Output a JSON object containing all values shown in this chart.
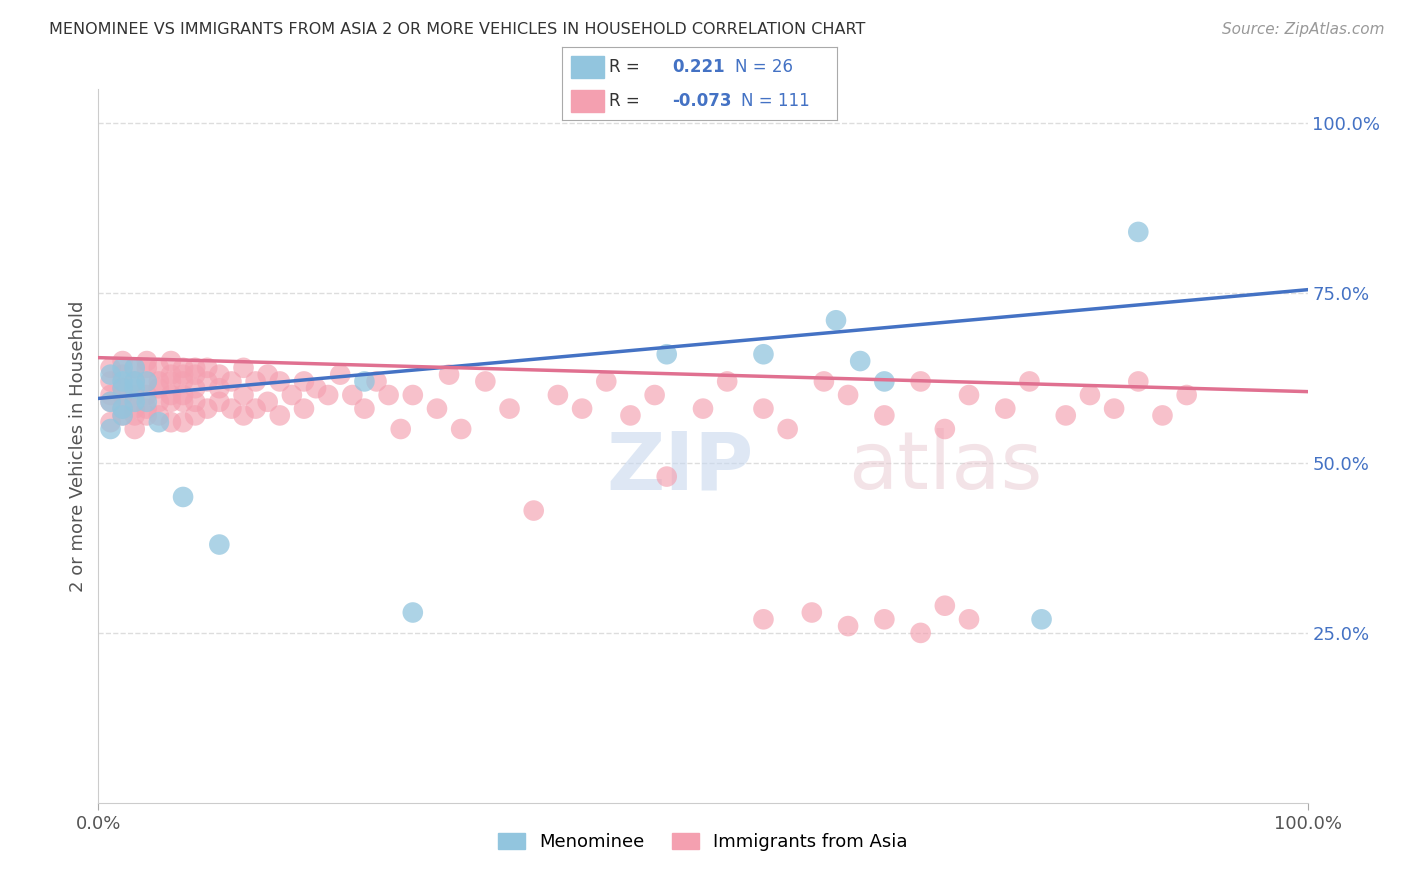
{
  "title": "MENOMINEE VS IMMIGRANTS FROM ASIA 2 OR MORE VEHICLES IN HOUSEHOLD CORRELATION CHART",
  "source": "Source: ZipAtlas.com",
  "ylabel": "2 or more Vehicles in Household",
  "blue_color": "#92c5de",
  "pink_color": "#f4a0b0",
  "blue_line_color": "#4472c4",
  "pink_line_color": "#e07090",
  "blue_R": "0.221",
  "blue_N": "26",
  "pink_R": "-0.073",
  "pink_N": "111",
  "blue_line_start_y": 0.595,
  "blue_line_end_y": 0.755,
  "pink_line_start_y": 0.655,
  "pink_line_end_y": 0.605,
  "blue_scatter_x": [
    0.01,
    0.01,
    0.01,
    0.02,
    0.02,
    0.02,
    0.02,
    0.02,
    0.03,
    0.03,
    0.03,
    0.03,
    0.04,
    0.04,
    0.05,
    0.07,
    0.1,
    0.22,
    0.26,
    0.47,
    0.55,
    0.61,
    0.63,
    0.65,
    0.78,
    0.86
  ],
  "blue_scatter_y": [
    0.63,
    0.55,
    0.59,
    0.62,
    0.58,
    0.64,
    0.57,
    0.61,
    0.62,
    0.59,
    0.64,
    0.61,
    0.62,
    0.59,
    0.56,
    0.45,
    0.38,
    0.62,
    0.28,
    0.66,
    0.66,
    0.71,
    0.65,
    0.62,
    0.27,
    0.84
  ],
  "pink_scatter_x": [
    0.01,
    0.01,
    0.01,
    0.01,
    0.01,
    0.02,
    0.02,
    0.02,
    0.02,
    0.02,
    0.02,
    0.03,
    0.03,
    0.03,
    0.03,
    0.03,
    0.03,
    0.04,
    0.04,
    0.04,
    0.04,
    0.04,
    0.04,
    0.05,
    0.05,
    0.05,
    0.05,
    0.05,
    0.06,
    0.06,
    0.06,
    0.06,
    0.06,
    0.06,
    0.07,
    0.07,
    0.07,
    0.07,
    0.07,
    0.07,
    0.08,
    0.08,
    0.08,
    0.08,
    0.08,
    0.09,
    0.09,
    0.09,
    0.1,
    0.1,
    0.1,
    0.11,
    0.11,
    0.12,
    0.12,
    0.12,
    0.13,
    0.13,
    0.14,
    0.14,
    0.15,
    0.15,
    0.16,
    0.17,
    0.17,
    0.18,
    0.19,
    0.2,
    0.21,
    0.22,
    0.23,
    0.24,
    0.25,
    0.26,
    0.28,
    0.29,
    0.3,
    0.32,
    0.34,
    0.36,
    0.38,
    0.4,
    0.42,
    0.44,
    0.46,
    0.47,
    0.5,
    0.52,
    0.55,
    0.57,
    0.6,
    0.62,
    0.65,
    0.68,
    0.7,
    0.72,
    0.75,
    0.77,
    0.8,
    0.82,
    0.84,
    0.86,
    0.88,
    0.9,
    0.55,
    0.59,
    0.62,
    0.65,
    0.68,
    0.7,
    0.72
  ],
  "pink_scatter_y": [
    0.62,
    0.59,
    0.64,
    0.6,
    0.56,
    0.65,
    0.6,
    0.57,
    0.63,
    0.58,
    0.61,
    0.64,
    0.6,
    0.57,
    0.62,
    0.58,
    0.55,
    0.64,
    0.6,
    0.57,
    0.62,
    0.58,
    0.65,
    0.62,
    0.59,
    0.57,
    0.64,
    0.61,
    0.63,
    0.59,
    0.65,
    0.6,
    0.56,
    0.62,
    0.63,
    0.59,
    0.64,
    0.6,
    0.56,
    0.62,
    0.63,
    0.59,
    0.64,
    0.57,
    0.61,
    0.62,
    0.58,
    0.64,
    0.63,
    0.59,
    0.61,
    0.62,
    0.58,
    0.64,
    0.6,
    0.57,
    0.62,
    0.58,
    0.63,
    0.59,
    0.62,
    0.57,
    0.6,
    0.62,
    0.58,
    0.61,
    0.6,
    0.63,
    0.6,
    0.58,
    0.62,
    0.6,
    0.55,
    0.6,
    0.58,
    0.63,
    0.55,
    0.62,
    0.58,
    0.43,
    0.6,
    0.58,
    0.62,
    0.57,
    0.6,
    0.48,
    0.58,
    0.62,
    0.58,
    0.55,
    0.62,
    0.6,
    0.57,
    0.62,
    0.55,
    0.6,
    0.58,
    0.62,
    0.57,
    0.6,
    0.58,
    0.62,
    0.57,
    0.6,
    0.27,
    0.28,
    0.26,
    0.27,
    0.25,
    0.29,
    0.27
  ],
  "xlim": [
    0.0,
    1.0
  ],
  "ylim": [
    0.0,
    1.05
  ],
  "grid_yticks": [
    0.25,
    0.5,
    0.75,
    1.0
  ],
  "right_tick_labels": [
    "25.0%",
    "50.0%",
    "75.0%",
    "100.0%"
  ],
  "background_color": "#ffffff",
  "grid_color": "#dddddd"
}
